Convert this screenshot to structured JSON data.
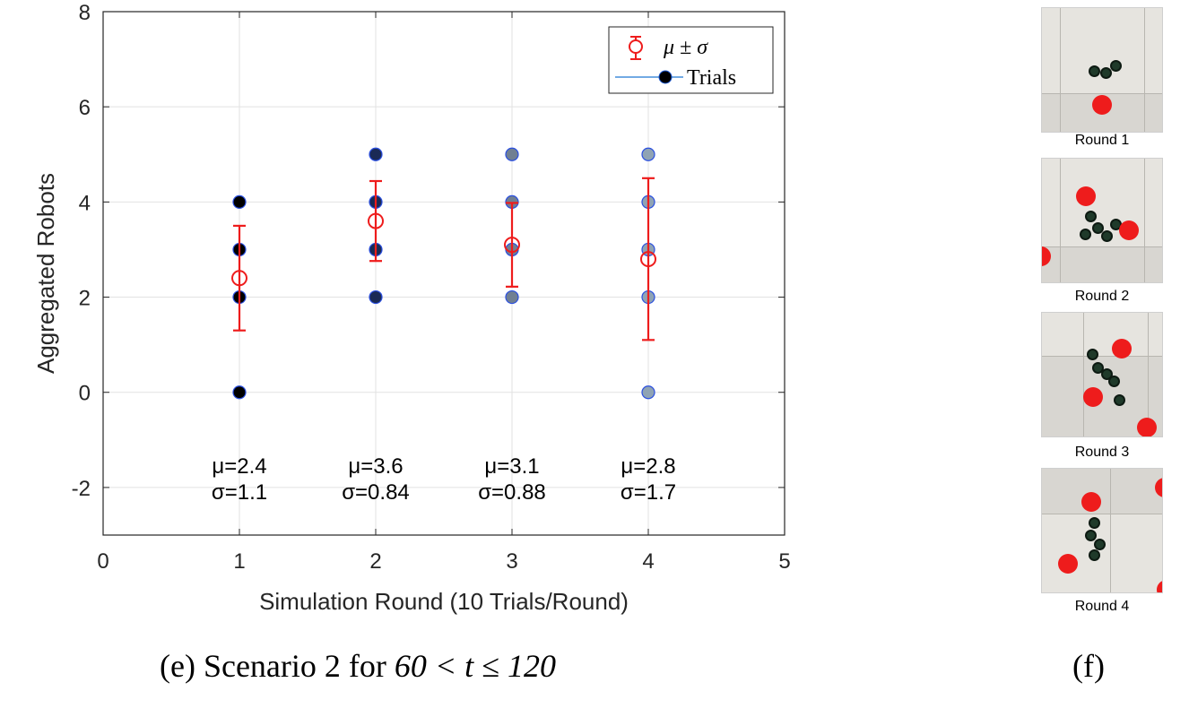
{
  "chart_data": {
    "type": "scatter",
    "xlabel": "Simulation Round (10 Trials/Round)",
    "ylabel": "Aggregated Robots",
    "xlim": [
      0,
      5
    ],
    "ylim": [
      -3,
      8
    ],
    "xticks": [
      "0",
      "1",
      "2",
      "3",
      "4",
      "5"
    ],
    "yticks": [
      "-2",
      "0",
      "2",
      "4",
      "6",
      "8"
    ],
    "grid": true,
    "legend": {
      "placement": "top-right",
      "entries": [
        {
          "label": "μ ± σ"
        },
        {
          "label": "Trials"
        }
      ]
    },
    "series": [
      {
        "name": "Trials",
        "points": [
          {
            "x": 1,
            "y": 0
          },
          {
            "x": 1,
            "y": 2
          },
          {
            "x": 1,
            "y": 3
          },
          {
            "x": 1,
            "y": 4
          },
          {
            "x": 2,
            "y": 2
          },
          {
            "x": 2,
            "y": 3
          },
          {
            "x": 2,
            "y": 4
          },
          {
            "x": 2,
            "y": 5
          },
          {
            "x": 3,
            "y": 2
          },
          {
            "x": 3,
            "y": 3
          },
          {
            "x": 3,
            "y": 4
          },
          {
            "x": 3,
            "y": 5
          },
          {
            "x": 4,
            "y": 0
          },
          {
            "x": 4,
            "y": 2
          },
          {
            "x": 4,
            "y": 3
          },
          {
            "x": 4,
            "y": 4
          },
          {
            "x": 4,
            "y": 5
          }
        ]
      },
      {
        "name": "μ ± σ",
        "x": [
          1,
          2,
          3,
          4
        ],
        "mean": [
          2.4,
          3.6,
          3.1,
          2.8
        ],
        "std": [
          1.1,
          0.84,
          0.88,
          1.7
        ]
      }
    ],
    "annotations": [
      {
        "x": 1,
        "mu": "μ=2.4",
        "sigma": "σ=1.1"
      },
      {
        "x": 2,
        "mu": "μ=3.6",
        "sigma": "σ=0.84"
      },
      {
        "x": 3,
        "mu": "μ=3.1",
        "sigma": "σ=0.88"
      },
      {
        "x": 4,
        "mu": "μ=2.8",
        "sigma": "σ=1.7"
      }
    ],
    "colors": {
      "mean_marker": "#ee1c1c",
      "trial_line": "#1f77d4"
    }
  },
  "caption_e": {
    "prefix": "(e) Scenario 2 for ",
    "math": "60 < t ≤ 120"
  },
  "caption_f": "(f)",
  "panels": [
    {
      "label": "Round 1"
    },
    {
      "label": "Round 2"
    },
    {
      "label": "Round 3"
    },
    {
      "label": "Round 4"
    }
  ]
}
